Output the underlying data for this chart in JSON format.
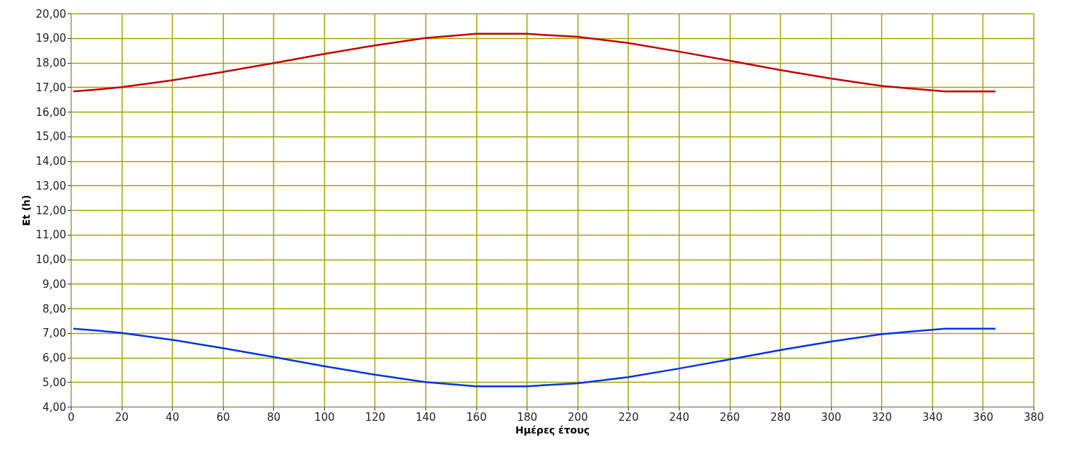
{
  "chart_data": {
    "type": "line",
    "xlabel": "Ημέρες έτους",
    "ylabel": "Et (h)",
    "series": [
      {
        "color": "#c00000",
        "x": [
          1,
          10,
          20,
          40,
          60,
          80,
          100,
          120,
          140,
          160,
          180,
          200,
          220,
          240,
          260,
          280,
          300,
          320,
          340,
          345,
          365
        ],
        "values": [
          16.83,
          16.9,
          17.0,
          17.28,
          17.62,
          17.98,
          18.35,
          18.7,
          19.0,
          19.17,
          19.17,
          19.05,
          18.8,
          18.45,
          18.08,
          17.7,
          17.35,
          17.05,
          16.87,
          16.83,
          16.83
        ]
      },
      {
        "color": "#0033e0",
        "x": [
          1,
          10,
          20,
          40,
          60,
          80,
          100,
          120,
          140,
          160,
          180,
          200,
          220,
          240,
          260,
          280,
          300,
          320,
          340,
          345,
          365
        ],
        "values": [
          7.17,
          7.1,
          7.0,
          6.72,
          6.38,
          6.02,
          5.65,
          5.3,
          5.0,
          4.83,
          4.83,
          4.95,
          5.2,
          5.55,
          5.92,
          6.3,
          6.65,
          6.95,
          7.13,
          7.17,
          7.17
        ]
      }
    ],
    "xlim": [
      0,
      380
    ],
    "xticks": [
      0,
      20,
      40,
      60,
      80,
      100,
      120,
      140,
      160,
      180,
      200,
      220,
      240,
      260,
      280,
      300,
      320,
      340,
      360,
      380
    ],
    "ylim": [
      4,
      20
    ],
    "yticks": [
      {
        "value": 4,
        "label": "4,00"
      },
      {
        "value": 5,
        "label": "5,00"
      },
      {
        "value": 6,
        "label": "6,00"
      },
      {
        "value": 7,
        "label": "7,00"
      },
      {
        "value": 8,
        "label": "8,00"
      },
      {
        "value": 9,
        "label": "9,00"
      },
      {
        "value": 10,
        "label": "10,00"
      },
      {
        "value": 11,
        "label": "11,00"
      },
      {
        "value": 12,
        "label": "12,00"
      },
      {
        "value": 13,
        "label": "13,00"
      },
      {
        "value": 14,
        "label": "14,00"
      },
      {
        "value": 15,
        "label": "15,00"
      },
      {
        "value": 16,
        "label": "16,00"
      },
      {
        "value": 17,
        "label": "17,00"
      },
      {
        "value": 18,
        "label": "18,00"
      },
      {
        "value": 19,
        "label": "19,00"
      },
      {
        "value": 20,
        "label": "20,00"
      }
    ],
    "grid": true,
    "line_style": "solid"
  }
}
